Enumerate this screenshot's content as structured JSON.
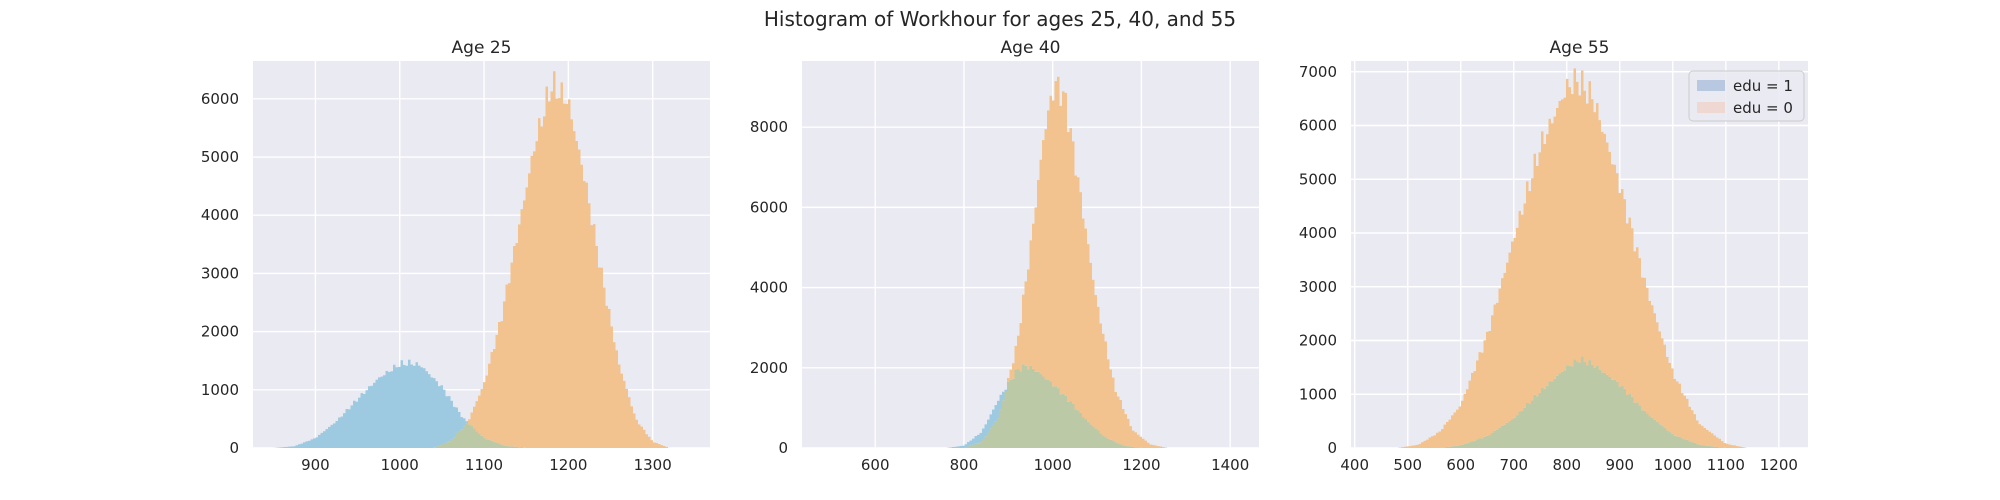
{
  "figure": {
    "title": "Histogram of Workhour for ages 25, 40, and 55"
  },
  "colors": {
    "background": "#ffffff",
    "axes_face": "#eaeaf2",
    "grid": "#ffffff",
    "text": "#262626",
    "edu1": "#9ecae1",
    "edu0": "#f2c38f",
    "overlap": "#bcc9a7"
  },
  "legend": {
    "placement": "top-right of third panel",
    "entries": [
      {
        "label": "edu = 1",
        "color": "#b8c8e0"
      },
      {
        "label": "edu = 0",
        "color": "#efd8d2"
      }
    ]
  },
  "chart_data": [
    {
      "type": "area",
      "title": "Age 25",
      "xlabel": "",
      "ylabel": "",
      "xlim": [
        826,
        1368
      ],
      "ylim": [
        0,
        6650
      ],
      "xticks": [
        900,
        1000,
        1100,
        1200,
        1300
      ],
      "yticks": [
        0,
        1000,
        2000,
        3000,
        4000,
        5000,
        6000
      ],
      "grid": true,
      "series": [
        {
          "name": "edu = 1",
          "color": "#9ecae1",
          "x": [
            850,
            875,
            900,
            925,
            950,
            975,
            1000,
            1012,
            1025,
            1050,
            1075,
            1100,
            1125,
            1150
          ],
          "y": [
            0,
            30,
            170,
            460,
            840,
            1200,
            1440,
            1460,
            1420,
            1050,
            520,
            170,
            40,
            0
          ]
        },
        {
          "name": "edu = 0",
          "color": "#f2c38f",
          "x": [
            1040,
            1060,
            1080,
            1100,
            1120,
            1140,
            1160,
            1180,
            1200,
            1220,
            1240,
            1260,
            1280,
            1300,
            1320
          ],
          "y": [
            0,
            120,
            420,
            1100,
            2200,
            3700,
            5200,
            6250,
            5950,
            4600,
            2950,
            1450,
            500,
            110,
            0
          ]
        }
      ]
    },
    {
      "type": "area",
      "title": "Age 40",
      "xlabel": "",
      "ylabel": "",
      "xlim": [
        435,
        1465
      ],
      "ylim": [
        0,
        9650
      ],
      "xticks": [
        600,
        800,
        1000,
        1200,
        1400
      ],
      "yticks": [
        0,
        2000,
        4000,
        6000,
        8000
      ],
      "grid": true,
      "series": [
        {
          "name": "edu = 1",
          "color": "#9ecae1",
          "x": [
            760,
            800,
            840,
            880,
            920,
            940,
            960,
            1000,
            1040,
            1080,
            1120,
            1160,
            1200
          ],
          "y": [
            0,
            60,
            400,
            1250,
            1950,
            2050,
            1950,
            1600,
            1150,
            650,
            260,
            60,
            0
          ]
        },
        {
          "name": "edu = 0",
          "color": "#f2c38f",
          "x": [
            800,
            840,
            880,
            920,
            950,
            980,
            1000,
            1010,
            1030,
            1060,
            1100,
            1140,
            1180,
            1220,
            1260
          ],
          "y": [
            0,
            150,
            800,
            2600,
            5000,
            7800,
            8900,
            9100,
            8600,
            6500,
            3600,
            1500,
            450,
            90,
            0
          ]
        }
      ]
    },
    {
      "type": "area",
      "title": "Age 55",
      "xlabel": "",
      "ylabel": "",
      "xlim": [
        393,
        1255
      ],
      "ylim": [
        0,
        7200
      ],
      "xticks": [
        400,
        500,
        600,
        700,
        800,
        900,
        1000,
        1100,
        1200
      ],
      "yticks": [
        0,
        1000,
        2000,
        3000,
        4000,
        5000,
        6000,
        7000
      ],
      "grid": true,
      "series": [
        {
          "name": "edu = 1",
          "color": "#9ecae1",
          "x": [
            560,
            600,
            650,
            700,
            750,
            800,
            825,
            850,
            900,
            950,
            1000,
            1050,
            1100
          ],
          "y": [
            0,
            50,
            220,
            550,
            1050,
            1500,
            1650,
            1550,
            1180,
            650,
            250,
            60,
            0
          ]
        },
        {
          "name": "edu = 0",
          "color": "#f2c38f",
          "x": [
            480,
            520,
            560,
            600,
            650,
            700,
            750,
            800,
            820,
            850,
            900,
            950,
            1000,
            1050,
            1100,
            1140
          ],
          "y": [
            0,
            60,
            300,
            800,
            2100,
            3900,
            5600,
            6700,
            6850,
            6500,
            4900,
            3000,
            1400,
            450,
            80,
            0
          ]
        }
      ]
    }
  ]
}
